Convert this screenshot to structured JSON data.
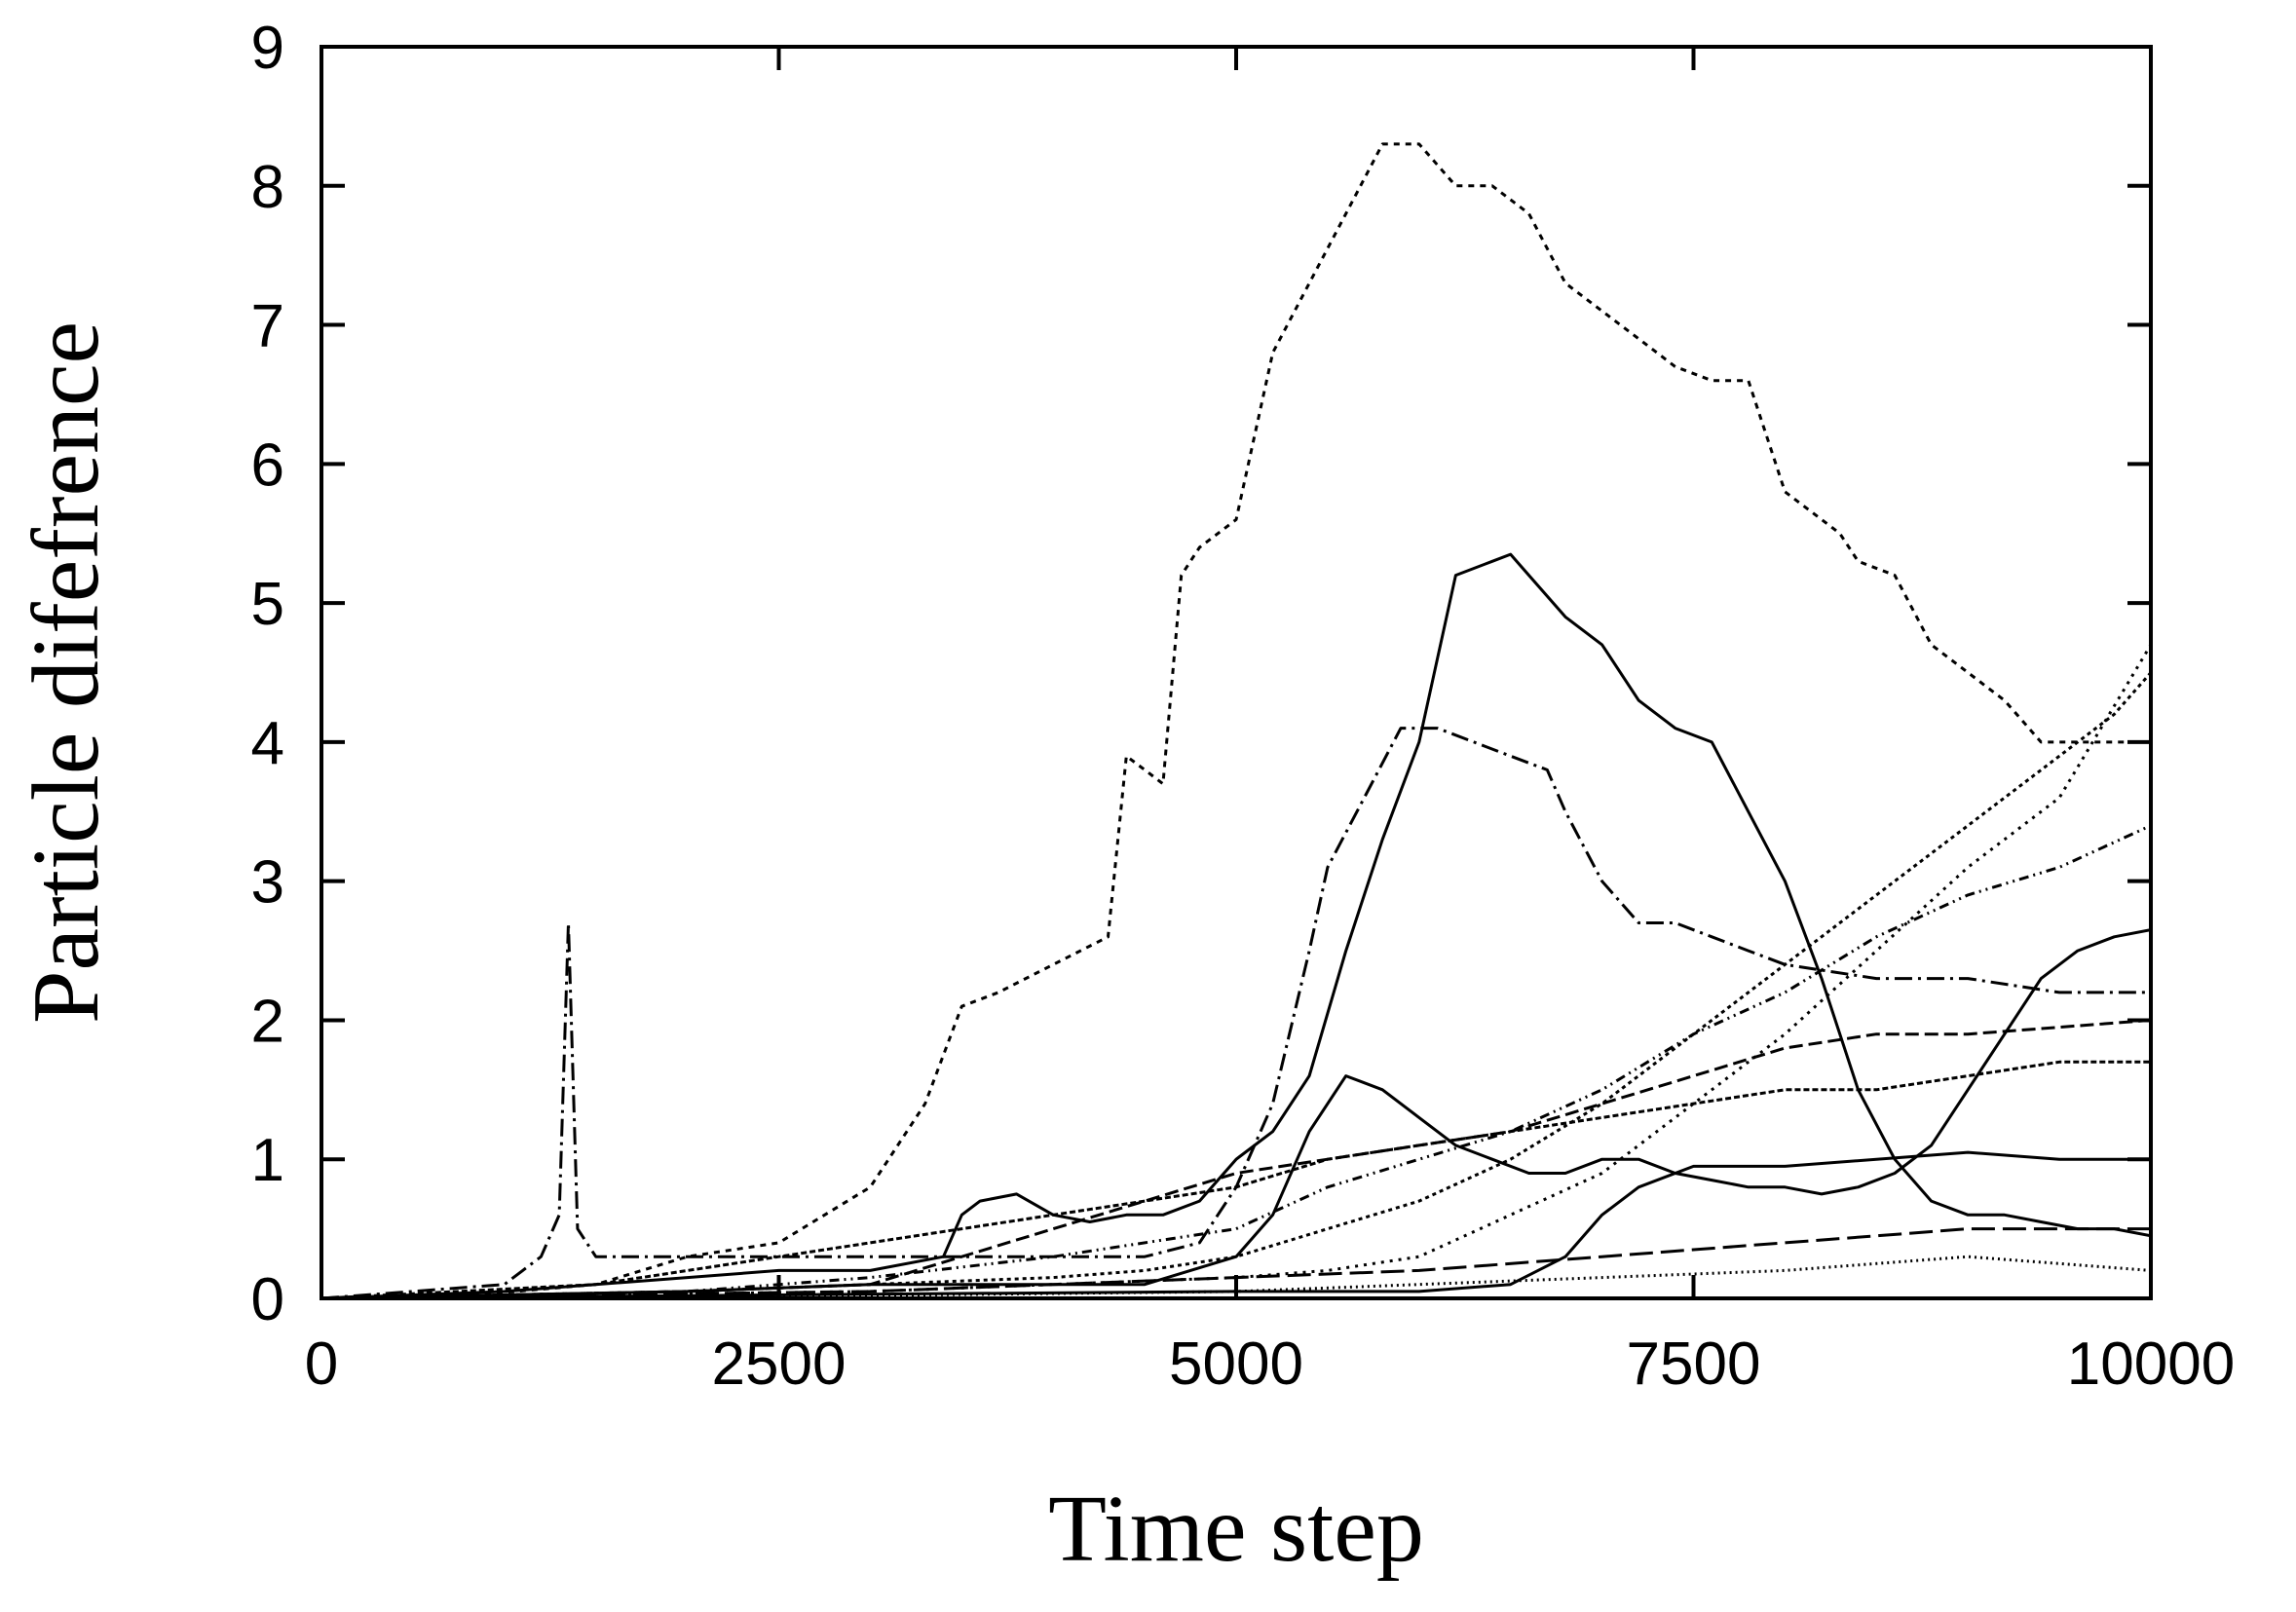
{
  "chart_data": {
    "type": "line",
    "title": "",
    "xlabel": "Time step",
    "ylabel": "Particle difefrence",
    "xlim": [
      0,
      10000
    ],
    "ylim": [
      0,
      9
    ],
    "xticks": [
      0,
      2500,
      5000,
      7500,
      10000
    ],
    "yticks": [
      0,
      1,
      2,
      3,
      4,
      5,
      6,
      7,
      8,
      9
    ],
    "xtick_labels": [
      "0",
      "2500",
      "5000",
      "7500",
      "10000"
    ],
    "ytick_labels": [
      "0",
      "1",
      "2",
      "3",
      "4",
      "5",
      "6",
      "7",
      "8",
      "9"
    ],
    "grid": false,
    "legend": "none",
    "line_color": "#000000",
    "series": [
      {
        "dash": "6,6",
        "x": [
          0,
          800,
          1500,
          2000,
          2500,
          3000,
          3300,
          3500,
          3700,
          4000,
          4300,
          4400,
          4500,
          4600,
          4700,
          4800,
          5000,
          5200,
          5400,
          5600,
          5800,
          6000,
          6200,
          6400,
          6600,
          6800,
          7000,
          7200,
          7400,
          7600,
          7800,
          8000,
          8200,
          8300,
          8400,
          8600,
          8800,
          9000,
          9200,
          9400,
          9600,
          9800,
          10000
        ],
        "y": [
          0,
          0.02,
          0.1,
          0.3,
          0.4,
          0.8,
          1.4,
          2.1,
          2.2,
          2.4,
          2.6,
          3.9,
          3.8,
          3.7,
          5.2,
          5.4,
          5.6,
          6.8,
          7.3,
          7.8,
          8.3,
          8.3,
          8.0,
          8.0,
          7.8,
          7.3,
          7.1,
          6.9,
          6.7,
          6.6,
          6.6,
          5.8,
          5.6,
          5.5,
          5.3,
          5.2,
          4.7,
          4.5,
          4.3,
          4.0,
          4.0,
          4.0,
          4.0
        ]
      },
      {
        "dash": "",
        "x": [
          0,
          1000,
          2000,
          2500,
          3000,
          3400,
          3500,
          3600,
          3800,
          4000,
          4200,
          4400,
          4500,
          4600,
          4800,
          5000,
          5200,
          5400,
          5600,
          5800,
          6000,
          6100,
          6200,
          6400,
          6500,
          6600,
          6800,
          7000,
          7200,
          7400,
          7600,
          7800,
          8000,
          8200,
          8400,
          8600,
          8800,
          9000,
          9200,
          9400,
          9600,
          9800,
          10000
        ],
        "y": [
          0,
          0.05,
          0.15,
          0.2,
          0.2,
          0.3,
          0.6,
          0.7,
          0.75,
          0.6,
          0.55,
          0.6,
          0.6,
          0.6,
          0.7,
          1.0,
          1.2,
          1.6,
          2.5,
          3.3,
          4.0,
          4.6,
          5.2,
          5.3,
          5.35,
          5.2,
          4.9,
          4.7,
          4.3,
          4.1,
          4.0,
          3.5,
          3.0,
          2.3,
          1.5,
          1.0,
          0.7,
          0.6,
          0.6,
          0.55,
          0.5,
          0.5,
          0.45
        ]
      },
      {
        "dash": "18,6,3,6",
        "x": [
          0,
          1000,
          1100,
          1200,
          1300,
          1350,
          1400,
          1500,
          2000,
          2500,
          3000,
          3500,
          4000,
          4500,
          4800,
          5000,
          5200,
          5400,
          5500,
          5700,
          5900,
          6100,
          6300,
          6500,
          6700,
          6800,
          7000,
          7200,
          7400,
          7600,
          7800,
          8000,
          8500,
          9000,
          9500,
          10000
        ],
        "y": [
          0,
          0.1,
          0.2,
          0.3,
          0.6,
          2.7,
          0.5,
          0.3,
          0.3,
          0.3,
          0.3,
          0.3,
          0.3,
          0.3,
          0.4,
          0.8,
          1.4,
          2.5,
          3.1,
          3.6,
          4.1,
          4.1,
          4.0,
          3.9,
          3.8,
          3.5,
          3.0,
          2.7,
          2.7,
          2.6,
          2.5,
          2.4,
          2.3,
          2.3,
          2.2,
          2.2
        ]
      },
      {
        "dash": "",
        "x": [
          0,
          2000,
          3000,
          4000,
          4500,
          5000,
          5200,
          5400,
          5600,
          5800,
          6000,
          6200,
          6400,
          6600,
          6800,
          7000,
          7200,
          7400,
          7600,
          7800,
          8000,
          8200,
          8400,
          8600,
          8800,
          9000,
          9200,
          9400,
          9600,
          9800,
          10000
        ],
        "y": [
          0,
          0.05,
          0.1,
          0.1,
          0.1,
          0.3,
          0.6,
          1.2,
          1.6,
          1.5,
          1.3,
          1.1,
          1.0,
          0.9,
          0.9,
          1.0,
          1.0,
          0.9,
          0.85,
          0.8,
          0.8,
          0.75,
          0.8,
          0.9,
          1.1,
          1.5,
          1.9,
          2.3,
          2.5,
          2.6,
          2.65
        ]
      },
      {
        "dash": "4,4",
        "x": [
          0,
          2000,
          3000,
          4000,
          4500,
          5000,
          5500,
          6000,
          6500,
          7000,
          7500,
          8000,
          8500,
          9000,
          9500,
          9800,
          10000
        ],
        "y": [
          0,
          0.05,
          0.1,
          0.15,
          0.2,
          0.3,
          0.5,
          0.7,
          1.0,
          1.4,
          1.9,
          2.4,
          2.9,
          3.4,
          3.9,
          4.2,
          4.5
        ]
      },
      {
        "dash": "3,6",
        "x": [
          0,
          3000,
          4000,
          5000,
          5500,
          6000,
          6500,
          7000,
          7500,
          8000,
          8500,
          9000,
          9500,
          10000
        ],
        "y": [
          0,
          0.05,
          0.1,
          0.15,
          0.2,
          0.3,
          0.6,
          0.9,
          1.4,
          1.9,
          2.5,
          3.1,
          3.6,
          4.7
        ]
      },
      {
        "dash": "14,6",
        "x": [
          0,
          2000,
          3000,
          3500,
          4000,
          4500,
          5000,
          5500,
          6000,
          6500,
          7000,
          7500,
          8000,
          8500,
          9000,
          9500,
          10000
        ],
        "y": [
          0,
          0.05,
          0.1,
          0.3,
          0.5,
          0.7,
          0.9,
          1.0,
          1.1,
          1.2,
          1.4,
          1.6,
          1.8,
          1.9,
          1.9,
          1.95,
          2.0
        ]
      },
      {
        "dash": "10,5,2,5,2,5",
        "x": [
          0,
          2000,
          3000,
          4000,
          5000,
          5500,
          6000,
          6500,
          7000,
          7500,
          8000,
          8500,
          9000,
          9500,
          10000
        ],
        "y": [
          0,
          0.05,
          0.15,
          0.3,
          0.5,
          0.8,
          1.0,
          1.2,
          1.5,
          1.9,
          2.2,
          2.6,
          2.9,
          3.1,
          3.4
        ]
      },
      {
        "dash": "6,3",
        "x": [
          0,
          1500,
          2500,
          3500,
          4000,
          4500,
          5000,
          5500,
          6000,
          6500,
          7000,
          7500,
          8000,
          8500,
          9000,
          9500,
          10000
        ],
        "y": [
          0,
          0.1,
          0.3,
          0.5,
          0.6,
          0.7,
          0.8,
          1.0,
          1.1,
          1.2,
          1.3,
          1.4,
          1.5,
          1.5,
          1.6,
          1.7,
          1.7
        ]
      },
      {
        "dash": "24,8",
        "x": [
          0,
          3000,
          4000,
          5000,
          6000,
          7000,
          7500,
          8000,
          8500,
          9000,
          9500,
          10000
        ],
        "y": [
          0,
          0.05,
          0.1,
          0.15,
          0.2,
          0.3,
          0.35,
          0.4,
          0.45,
          0.5,
          0.5,
          0.5
        ]
      },
      {
        "dash": "2,4",
        "x": [
          0,
          3000,
          5000,
          6000,
          7000,
          8000,
          8500,
          9000,
          9500,
          10000
        ],
        "y": [
          0,
          0.02,
          0.05,
          0.1,
          0.15,
          0.2,
          0.25,
          0.3,
          0.25,
          0.2
        ]
      },
      {
        "dash": "",
        "x": [
          0,
          5000,
          6000,
          6500,
          6800,
          7000,
          7200,
          7500,
          7800,
          8000,
          8500,
          9000,
          9500,
          10000
        ],
        "y": [
          0,
          0.05,
          0.05,
          0.1,
          0.3,
          0.6,
          0.8,
          0.95,
          0.95,
          0.95,
          1.0,
          1.05,
          1.0,
          1.0
        ]
      }
    ]
  }
}
